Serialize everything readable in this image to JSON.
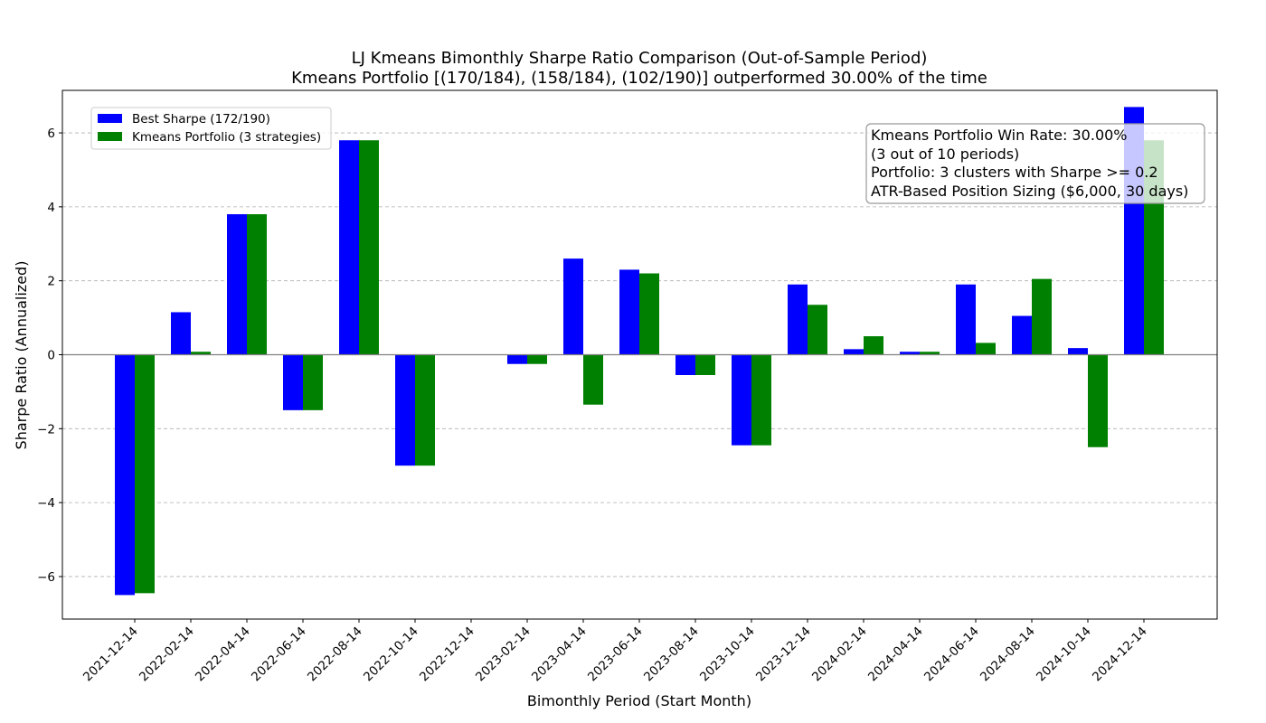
{
  "chart_data": {
    "type": "bar",
    "title": "LJ Kmeans Bimonthly Sharpe Ratio Comparison (Out-of-Sample Period)",
    "subtitle": "Kmeans Portfolio [(170/184), (158/184), (102/190)] outperformed 30.00% of the time",
    "xlabel": "Bimonthly Period (Start Month)",
    "ylabel": "Sharpe Ratio (Annualized)",
    "ylim": [
      -7.15,
      7.15
    ],
    "yticks": [
      -6,
      -4,
      -2,
      0,
      2,
      4,
      6
    ],
    "grid": "horizontal dashed",
    "legend_position": "top-left",
    "categories": [
      "2021-12-14",
      "2022-02-14",
      "2022-04-14",
      "2022-06-14",
      "2022-08-14",
      "2022-10-14",
      "2022-12-14",
      "2023-02-14",
      "2023-04-14",
      "2023-06-14",
      "2023-08-14",
      "2023-10-14",
      "2023-12-14",
      "2024-02-14",
      "2024-04-14",
      "2024-06-14",
      "2024-08-14",
      "2024-10-14",
      "2024-12-14"
    ],
    "series": [
      {
        "name": "Best Sharpe (172/190)",
        "color": "#0000ff",
        "values": [
          -6.5,
          1.15,
          3.8,
          -1.5,
          5.8,
          -3.0,
          0.0,
          -0.25,
          2.6,
          2.3,
          -0.55,
          -2.45,
          1.9,
          0.15,
          0.08,
          1.9,
          1.05,
          0.18,
          6.7
        ]
      },
      {
        "name": "Kmeans Portfolio (3 strategies)",
        "color": "#008000",
        "values": [
          -6.45,
          0.08,
          3.8,
          -1.5,
          5.8,
          -3.0,
          0.0,
          -0.25,
          -1.35,
          2.2,
          -0.55,
          -2.45,
          1.35,
          0.5,
          0.08,
          0.32,
          2.05,
          -2.5,
          5.8
        ]
      }
    ],
    "annotation": [
      "Kmeans Portfolio Win Rate: 30.00%",
      "(3 out of 10 periods)",
      "Portfolio: 3 clusters with Sharpe >= 0.2",
      "ATR-Based Position Sizing ($6,000, 30 days)"
    ]
  }
}
